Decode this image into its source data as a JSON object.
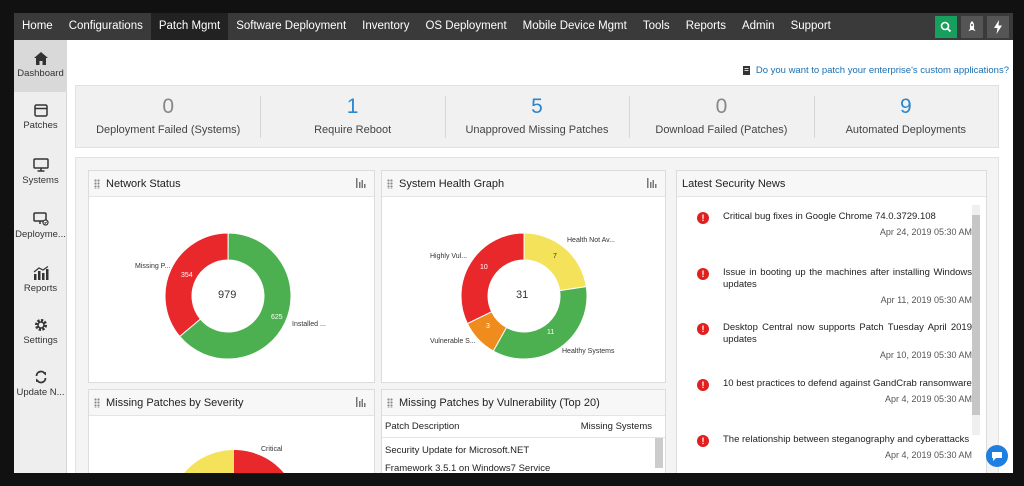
{
  "nav": {
    "items": [
      "Home",
      "Configurations",
      "Patch Mgmt",
      "Software Deployment",
      "Inventory",
      "OS Deployment",
      "Mobile Device Mgmt",
      "Tools",
      "Reports",
      "Admin",
      "Support"
    ],
    "active": "Patch Mgmt"
  },
  "sidebar": {
    "items": [
      {
        "label": "Dashboard",
        "icon": "home-icon"
      },
      {
        "label": "Patches",
        "icon": "patches-icon"
      },
      {
        "label": "Systems",
        "icon": "monitor-icon"
      },
      {
        "label": "Deployme...",
        "icon": "deployment-icon"
      },
      {
        "label": "Reports",
        "icon": "reports-icon"
      },
      {
        "label": "Settings",
        "icon": "gear-icon"
      },
      {
        "label": "Update N...",
        "icon": "refresh-icon"
      }
    ]
  },
  "custom_link": "Do you want to patch your enterprise's custom applications?",
  "summary": [
    {
      "value": "0",
      "label": "Deployment Failed (Systems)"
    },
    {
      "value": "1",
      "label": "Require Reboot"
    },
    {
      "value": "5",
      "label": "Unapproved Missing Patches"
    },
    {
      "value": "0",
      "label": "Download Failed (Patches)"
    },
    {
      "value": "9",
      "label": "Automated Deployments"
    }
  ],
  "network_status": {
    "title": "Network Status",
    "center": "979",
    "labels": {
      "missing": "Missing P...",
      "installed": "Installed ..."
    },
    "values": {
      "missing": "354",
      "installed": "625"
    },
    "chart_data": {
      "type": "pie",
      "categories": [
        "Missing Patches",
        "Installed Patches"
      ],
      "values": [
        354,
        625
      ],
      "colors": [
        "#e8282a",
        "#4caf50"
      ]
    }
  },
  "system_health": {
    "title": "System Health Graph",
    "center": "31",
    "labels": {
      "highly": "Highly Vul...",
      "notav": "Health Not Av...",
      "vulnerable": "Vulnerable S...",
      "healthy": "Healthy Systems"
    },
    "values": {
      "highly": "10",
      "notav": "7",
      "vulnerable": "3",
      "healthy": "11"
    },
    "chart_data": {
      "type": "pie",
      "categories": [
        "Highly Vulnerable",
        "Health Not Available",
        "Healthy Systems",
        "Vulnerable Systems"
      ],
      "values": [
        10,
        7,
        11,
        3
      ],
      "colors": [
        "#e8282a",
        "#f4e35a",
        "#4caf50",
        "#f08c1e"
      ]
    }
  },
  "severity": {
    "title": "Missing Patches by Severity",
    "labels": {
      "critical": "Critical"
    }
  },
  "vulnerability": {
    "title": "Missing Patches by Vulnerability (Top 20)",
    "col1": "Patch Description",
    "col2": "Missing Systems",
    "row1": "Security Update for Microsoft.NET",
    "row2": "Framework 3.5.1 on Windows7 Service"
  },
  "news": {
    "title": "Latest Security News",
    "items": [
      {
        "title": "Critical bug fixes in Google Chrome 74.0.3729.108",
        "date": "Apr 24, 2019 05:30 AM"
      },
      {
        "title": "Issue in booting up the machines after installing Windows updates",
        "date": "Apr 11, 2019 05:30 AM"
      },
      {
        "title": "Desktop Central now supports Patch Tuesday April 2019 updates",
        "date": "Apr 10, 2019 05:30 AM"
      },
      {
        "title": "10 best practices to defend against GandCrab ransomware",
        "date": "Apr 4, 2019 05:30 AM"
      },
      {
        "title": "The relationship between steganography and cyberattacks",
        "date": "Apr 4, 2019 05:30 AM"
      }
    ]
  }
}
